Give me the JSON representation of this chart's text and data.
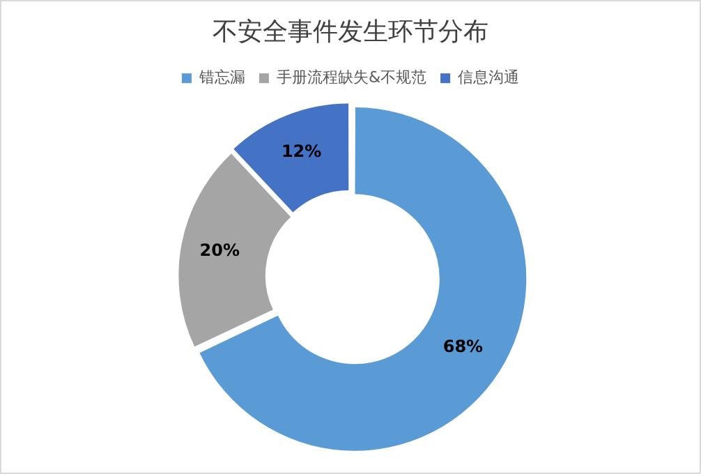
{
  "chart_data": {
    "type": "donut",
    "title": "不安全事件发生环节分布",
    "categories": [
      "错忘漏",
      "手册流程缺失&不规范",
      "信息沟通"
    ],
    "values": [
      68,
      20,
      12
    ],
    "colors": [
      "#5b9bd5",
      "#a5a5a5",
      "#4472c4"
    ],
    "value_labels": [
      "68%",
      "20%",
      "12%"
    ],
    "legend": "top"
  }
}
